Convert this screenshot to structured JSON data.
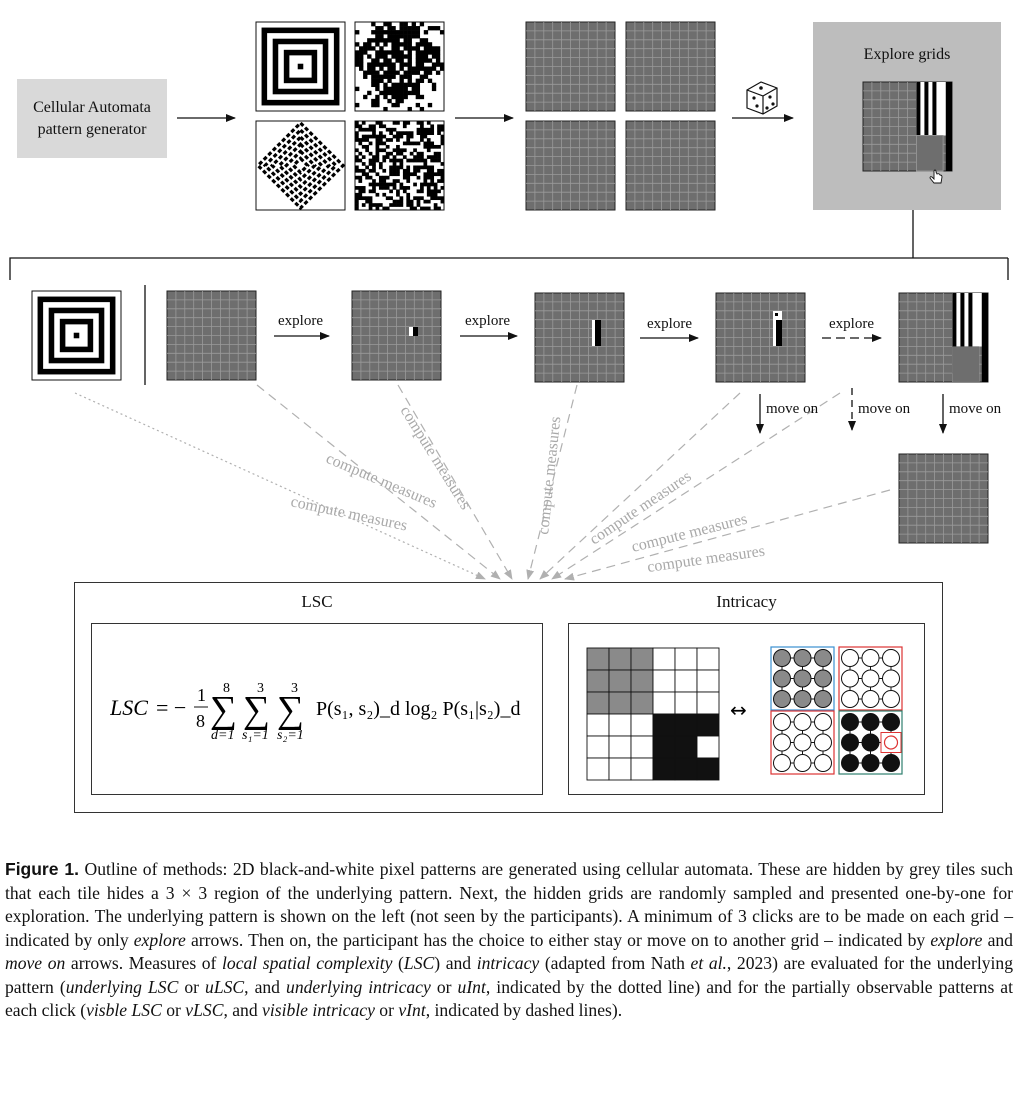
{
  "generator": {
    "line1": "Cellular Automata",
    "line2": "pattern generator"
  },
  "explore_panel": {
    "title": "Explore grids"
  },
  "arrows": {
    "explore": "explore",
    "move_on": "move on"
  },
  "compute_label": "compute measures",
  "measures": {
    "lsc_title": "LSC",
    "intricacy_title": "Intricacy",
    "formula": {
      "lhs": "LSC",
      "frac_num": "1",
      "frac_den": "8",
      "sum1_top": "8",
      "sum1_bot": "d=1",
      "sum2_top": "3",
      "sum2_bot": "s₁=1",
      "sum3_top": "3",
      "sum3_bot": "s₂=1",
      "body": "P(s₁, s₂)_d log₂ P(s₁|s₂)_d"
    },
    "double_arrow": "↔"
  },
  "caption": {
    "figure_label": "Figure 1.",
    "s1": " Outline of methods: 2D black-and-white pixel patterns are generated using cellular automata. These are hidden by grey tiles such that each tile hides a 3 × 3 region of the underlying pattern. Next, the hidden grids are randomly sampled and presented one-by-one for exploration. The underlying pattern is shown on the left (not seen by the participants). A minimum of 3 clicks are to be made on each grid – indicated by only ",
    "i1": "explore",
    "s2": " arrows. Then on, the participant has the choice to either stay or move on to another grid – indicated by ",
    "i2": "explore",
    "s3": " and ",
    "i3": "move on",
    "s4": " arrows. Measures of ",
    "i4": "local spatial complexity",
    "s5": " (",
    "i5": "LSC",
    "s6": ") and ",
    "i6": "intricacy",
    "s7": " (adapted from Nath ",
    "i7": "et al.",
    "s8": ", 2023) are evaluated for the underlying pattern (",
    "i8": "underlying LSC",
    "s9": " or ",
    "i9": "uLSC",
    "s10": ", and ",
    "i10": "underlying intricacy",
    "s11": " or ",
    "i11": "uInt",
    "s12": ", indicated by the dotted line) and for the partially observable patterns at each click (",
    "i12": "visble LSC",
    "s13": " or ",
    "i13": "vLSC",
    "s14": ", and ",
    "i14": "visible intricacy",
    "s15": " or ",
    "i15": "vInt",
    "s16": ", indicated by dashed lines)."
  }
}
